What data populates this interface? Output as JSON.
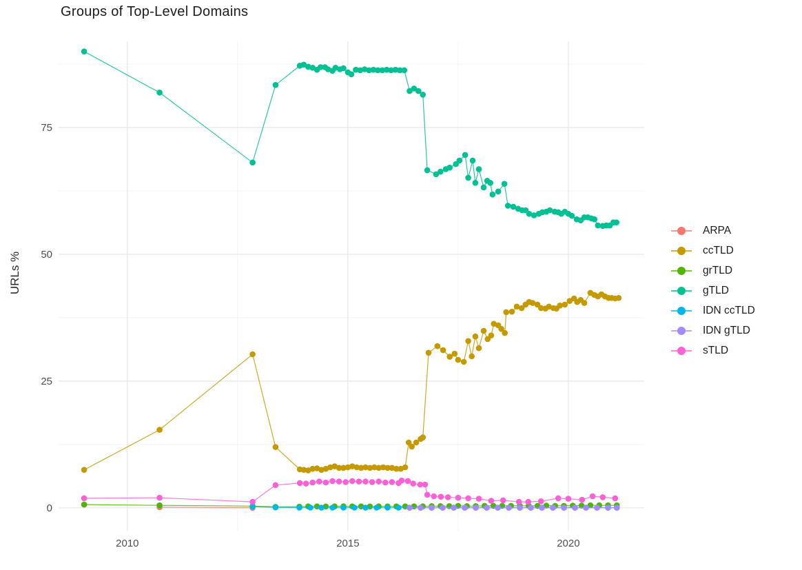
{
  "title": "Groups of Top-Level Domains",
  "chart_data": {
    "type": "line",
    "title": "Groups of Top-Level Domains",
    "xlabel": "",
    "ylabel": "URLs %",
    "grid": true,
    "legend_position": "right",
    "xlim": [
      2008.44,
      2021.72
    ],
    "ylim": [
      -4.5,
      92
    ],
    "x_ticks": [
      2010,
      2015,
      2020
    ],
    "x_minor": [
      2012.5,
      2017.5
    ],
    "y_ticks": [
      0,
      25,
      50,
      75
    ],
    "y_minor": [
      12.5,
      37.5,
      62.5,
      87.5
    ],
    "series": [
      {
        "name": "ARPA",
        "color": "#F8766D",
        "points": [
          [
            2010.73,
            0.15
          ],
          [
            2012.84,
            0.03
          ]
        ]
      },
      {
        "name": "ccTLD",
        "color": "#C49A00",
        "points": [
          [
            2009.02,
            7.5
          ],
          [
            2010.73,
            15.4
          ],
          [
            2012.84,
            30.3
          ],
          [
            2013.36,
            12.0
          ],
          [
            2013.91,
            7.6
          ],
          [
            2014.0,
            7.5
          ],
          [
            2014.1,
            7.4
          ],
          [
            2014.2,
            7.7
          ],
          [
            2014.3,
            7.8
          ],
          [
            2014.4,
            7.5
          ],
          [
            2014.5,
            7.7
          ],
          [
            2014.6,
            8.0
          ],
          [
            2014.7,
            8.2
          ],
          [
            2014.8,
            7.9
          ],
          [
            2014.9,
            7.9
          ],
          [
            2015.0,
            8.0
          ],
          [
            2015.1,
            8.2
          ],
          [
            2015.2,
            8.0
          ],
          [
            2015.3,
            7.9
          ],
          [
            2015.4,
            8.0
          ],
          [
            2015.5,
            7.9
          ],
          [
            2015.6,
            8.0
          ],
          [
            2015.7,
            7.9
          ],
          [
            2015.8,
            8.0
          ],
          [
            2015.9,
            7.9
          ],
          [
            2016.0,
            7.9
          ],
          [
            2016.1,
            7.7
          ],
          [
            2016.2,
            7.7
          ],
          [
            2016.3,
            8.0
          ],
          [
            2016.38,
            12.9
          ],
          [
            2016.45,
            12.1
          ],
          [
            2016.55,
            12.9
          ],
          [
            2016.65,
            13.6
          ],
          [
            2016.7,
            13.9
          ],
          [
            2016.83,
            30.6
          ],
          [
            2017.03,
            31.9
          ],
          [
            2017.16,
            31.1
          ],
          [
            2017.31,
            29.8
          ],
          [
            2017.42,
            30.4
          ],
          [
            2017.5,
            29.2
          ],
          [
            2017.63,
            28.8
          ],
          [
            2017.73,
            32.9
          ],
          [
            2017.81,
            29.9
          ],
          [
            2017.89,
            33.8
          ],
          [
            2017.97,
            31.5
          ],
          [
            2018.08,
            34.9
          ],
          [
            2018.17,
            33.3
          ],
          [
            2018.25,
            34.0
          ],
          [
            2018.31,
            36.3
          ],
          [
            2018.41,
            36.0
          ],
          [
            2018.48,
            35.3
          ],
          [
            2018.56,
            34.5
          ],
          [
            2018.59,
            38.6
          ],
          [
            2018.72,
            38.7
          ],
          [
            2018.83,
            39.7
          ],
          [
            2018.94,
            39.4
          ],
          [
            2019.03,
            40.1
          ],
          [
            2019.11,
            40.6
          ],
          [
            2019.19,
            40.4
          ],
          [
            2019.3,
            40.1
          ],
          [
            2019.38,
            39.4
          ],
          [
            2019.48,
            39.3
          ],
          [
            2019.56,
            39.7
          ],
          [
            2019.66,
            39.4
          ],
          [
            2019.73,
            39.3
          ],
          [
            2019.81,
            39.9
          ],
          [
            2019.92,
            40.1
          ],
          [
            2020.03,
            40.8
          ],
          [
            2020.13,
            41.3
          ],
          [
            2020.2,
            40.6
          ],
          [
            2020.28,
            41.0
          ],
          [
            2020.36,
            40.4
          ],
          [
            2020.5,
            42.4
          ],
          [
            2020.59,
            42.0
          ],
          [
            2020.67,
            41.7
          ],
          [
            2020.75,
            42.1
          ],
          [
            2020.83,
            41.7
          ],
          [
            2020.91,
            41.4
          ],
          [
            2020.98,
            41.4
          ],
          [
            2021.06,
            41.3
          ],
          [
            2021.14,
            41.4
          ]
        ]
      },
      {
        "name": "grTLD",
        "color": "#53B400",
        "points": [
          [
            2009.02,
            0.65
          ],
          [
            2010.73,
            0.5
          ],
          [
            2012.84,
            0.35
          ],
          [
            2013.36,
            0.2
          ],
          [
            2013.9,
            0.25
          ],
          [
            2014.1,
            0.3
          ],
          [
            2014.3,
            0.3
          ],
          [
            2014.5,
            0.28
          ],
          [
            2014.7,
            0.3
          ],
          [
            2014.9,
            0.32
          ],
          [
            2015.1,
            0.3
          ],
          [
            2015.3,
            0.3
          ],
          [
            2015.5,
            0.28
          ],
          [
            2015.7,
            0.3
          ],
          [
            2015.9,
            0.3
          ],
          [
            2016.1,
            0.3
          ],
          [
            2016.3,
            0.3
          ],
          [
            2016.5,
            0.3
          ],
          [
            2016.7,
            0.3
          ],
          [
            2016.9,
            0.35
          ],
          [
            2017.1,
            0.35
          ],
          [
            2017.3,
            0.35
          ],
          [
            2017.5,
            0.4
          ],
          [
            2017.7,
            0.35
          ],
          [
            2017.9,
            0.35
          ],
          [
            2018.1,
            0.4
          ],
          [
            2018.3,
            0.4
          ],
          [
            2018.5,
            0.4
          ],
          [
            2018.7,
            0.4
          ],
          [
            2018.9,
            0.4
          ],
          [
            2019.1,
            0.4
          ],
          [
            2019.3,
            0.4
          ],
          [
            2019.5,
            0.45
          ],
          [
            2019.7,
            0.4
          ],
          [
            2019.9,
            0.4
          ],
          [
            2020.1,
            0.45
          ],
          [
            2020.3,
            0.45
          ],
          [
            2020.5,
            0.5
          ],
          [
            2020.7,
            0.5
          ],
          [
            2020.9,
            0.5
          ],
          [
            2021.1,
            0.5
          ]
        ]
      },
      {
        "name": "gTLD",
        "color": "#00C094",
        "points": [
          [
            2009.02,
            90.0
          ],
          [
            2010.73,
            81.9
          ],
          [
            2012.84,
            68.1
          ],
          [
            2013.36,
            83.4
          ],
          [
            2013.91,
            87.2
          ],
          [
            2014.0,
            87.4
          ],
          [
            2014.1,
            87.0
          ],
          [
            2014.2,
            86.8
          ],
          [
            2014.3,
            86.4
          ],
          [
            2014.38,
            86.9
          ],
          [
            2014.48,
            86.9
          ],
          [
            2014.55,
            86.5
          ],
          [
            2014.65,
            86.2
          ],
          [
            2014.72,
            86.8
          ],
          [
            2014.82,
            86.5
          ],
          [
            2014.9,
            86.7
          ],
          [
            2015.0,
            85.9
          ],
          [
            2015.08,
            85.5
          ],
          [
            2015.18,
            86.4
          ],
          [
            2015.28,
            86.3
          ],
          [
            2015.38,
            86.5
          ],
          [
            2015.48,
            86.3
          ],
          [
            2015.58,
            86.4
          ],
          [
            2015.68,
            86.3
          ],
          [
            2015.78,
            86.3
          ],
          [
            2015.88,
            86.4
          ],
          [
            2015.98,
            86.3
          ],
          [
            2016.08,
            86.4
          ],
          [
            2016.18,
            86.3
          ],
          [
            2016.28,
            86.3
          ],
          [
            2016.4,
            82.2
          ],
          [
            2016.5,
            82.7
          ],
          [
            2016.6,
            82.2
          ],
          [
            2016.7,
            81.5
          ],
          [
            2016.8,
            66.6
          ],
          [
            2017.0,
            65.8
          ],
          [
            2017.1,
            66.3
          ],
          [
            2017.22,
            66.8
          ],
          [
            2017.31,
            67.1
          ],
          [
            2017.45,
            67.8
          ],
          [
            2017.53,
            68.5
          ],
          [
            2017.66,
            69.6
          ],
          [
            2017.73,
            65.1
          ],
          [
            2017.83,
            68.5
          ],
          [
            2017.89,
            64.1
          ],
          [
            2017.97,
            66.8
          ],
          [
            2018.08,
            63.2
          ],
          [
            2018.16,
            64.5
          ],
          [
            2018.23,
            64.1
          ],
          [
            2018.28,
            61.8
          ],
          [
            2018.41,
            62.4
          ],
          [
            2018.55,
            63.9
          ],
          [
            2018.63,
            59.6
          ],
          [
            2018.75,
            59.4
          ],
          [
            2018.86,
            59.0
          ],
          [
            2018.95,
            58.7
          ],
          [
            2019.03,
            58.7
          ],
          [
            2019.11,
            58.0
          ],
          [
            2019.22,
            57.7
          ],
          [
            2019.33,
            58.0
          ],
          [
            2019.41,
            58.3
          ],
          [
            2019.5,
            58.4
          ],
          [
            2019.58,
            58.7
          ],
          [
            2019.69,
            58.4
          ],
          [
            2019.77,
            58.3
          ],
          [
            2019.84,
            58.0
          ],
          [
            2019.92,
            58.4
          ],
          [
            2020.0,
            58.0
          ],
          [
            2020.08,
            57.6
          ],
          [
            2020.19,
            56.9
          ],
          [
            2020.28,
            56.7
          ],
          [
            2020.36,
            57.3
          ],
          [
            2020.44,
            57.3
          ],
          [
            2020.52,
            57.1
          ],
          [
            2020.59,
            56.9
          ],
          [
            2020.67,
            55.7
          ],
          [
            2020.78,
            55.6
          ],
          [
            2020.86,
            55.7
          ],
          [
            2020.94,
            55.7
          ],
          [
            2021.02,
            56.3
          ],
          [
            2021.09,
            56.3
          ]
        ]
      },
      {
        "name": "IDN ccTLD",
        "color": "#00B6EB",
        "points": [
          [
            2012.84,
            0.25
          ],
          [
            2013.36,
            0.1
          ],
          [
            2013.9,
            0.05
          ],
          [
            2014.15,
            0.05
          ],
          [
            2014.4,
            0.05
          ],
          [
            2014.65,
            0.05
          ],
          [
            2014.9,
            0.05
          ],
          [
            2015.15,
            0.05
          ],
          [
            2015.4,
            0.05
          ],
          [
            2015.65,
            0.05
          ],
          [
            2015.9,
            0.05
          ],
          [
            2016.15,
            0.05
          ],
          [
            2016.4,
            0.05
          ],
          [
            2016.65,
            0.05
          ],
          [
            2016.9,
            0.05
          ],
          [
            2017.15,
            0.05
          ],
          [
            2017.4,
            0.05
          ],
          [
            2017.65,
            0.05
          ],
          [
            2017.9,
            0.05
          ],
          [
            2018.15,
            0.05
          ],
          [
            2018.4,
            0.05
          ],
          [
            2018.65,
            0.05
          ],
          [
            2018.9,
            0.05
          ],
          [
            2019.15,
            0.05
          ],
          [
            2019.4,
            0.05
          ],
          [
            2019.65,
            0.05
          ],
          [
            2019.9,
            0.05
          ],
          [
            2020.15,
            0.05
          ],
          [
            2020.4,
            0.05
          ],
          [
            2020.65,
            0.05
          ],
          [
            2020.9,
            0.05
          ],
          [
            2021.1,
            0.05
          ]
        ]
      },
      {
        "name": "IDN gTLD",
        "color": "#A58AFF",
        "points": [
          [
            2016.4,
            0.03
          ],
          [
            2016.65,
            0.03
          ],
          [
            2016.9,
            0.03
          ],
          [
            2017.15,
            0.03
          ],
          [
            2017.4,
            0.03
          ],
          [
            2017.65,
            0.03
          ],
          [
            2017.9,
            0.03
          ],
          [
            2018.15,
            0.03
          ],
          [
            2018.4,
            0.03
          ],
          [
            2018.65,
            0.03
          ],
          [
            2018.9,
            0.03
          ],
          [
            2019.15,
            0.03
          ],
          [
            2019.4,
            0.03
          ],
          [
            2019.65,
            0.03
          ],
          [
            2019.9,
            0.03
          ],
          [
            2020.15,
            0.03
          ],
          [
            2020.4,
            0.03
          ],
          [
            2020.65,
            0.03
          ],
          [
            2020.9,
            0.03
          ],
          [
            2021.1,
            0.03
          ]
        ]
      },
      {
        "name": "sTLD",
        "color": "#FB61D7",
        "points": [
          [
            2009.02,
            1.9
          ],
          [
            2010.73,
            2.0
          ],
          [
            2012.84,
            1.2
          ],
          [
            2013.36,
            4.5
          ],
          [
            2013.91,
            4.9
          ],
          [
            2014.05,
            4.8
          ],
          [
            2014.2,
            5.0
          ],
          [
            2014.35,
            5.2
          ],
          [
            2014.5,
            5.0
          ],
          [
            2014.65,
            5.3
          ],
          [
            2014.8,
            5.2
          ],
          [
            2014.95,
            5.1
          ],
          [
            2015.1,
            5.3
          ],
          [
            2015.25,
            5.2
          ],
          [
            2015.4,
            5.2
          ],
          [
            2015.55,
            5.1
          ],
          [
            2015.7,
            5.2
          ],
          [
            2015.85,
            5.0
          ],
          [
            2016.0,
            5.1
          ],
          [
            2016.15,
            4.9
          ],
          [
            2016.22,
            5.4
          ],
          [
            2016.36,
            5.3
          ],
          [
            2016.48,
            4.8
          ],
          [
            2016.64,
            4.6
          ],
          [
            2016.75,
            4.6
          ],
          [
            2016.8,
            2.6
          ],
          [
            2016.95,
            2.3
          ],
          [
            2017.11,
            2.2
          ],
          [
            2017.27,
            2.1
          ],
          [
            2017.5,
            2.0
          ],
          [
            2017.73,
            1.9
          ],
          [
            2017.97,
            1.8
          ],
          [
            2018.25,
            1.4
          ],
          [
            2018.52,
            1.5
          ],
          [
            2018.88,
            1.2
          ],
          [
            2019.09,
            1.2
          ],
          [
            2019.38,
            1.3
          ],
          [
            2019.77,
            1.9
          ],
          [
            2020.0,
            1.8
          ],
          [
            2020.31,
            1.6
          ],
          [
            2020.55,
            2.3
          ],
          [
            2020.78,
            2.1
          ],
          [
            2021.06,
            1.9
          ]
        ]
      }
    ]
  }
}
